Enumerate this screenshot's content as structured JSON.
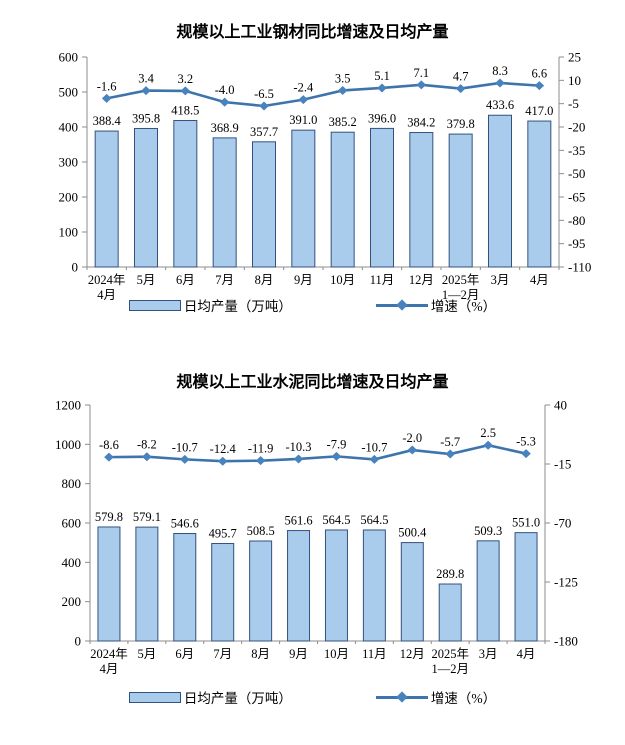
{
  "colors": {
    "bar_fill": "#A9CBEC",
    "bar_stroke": "#33517F",
    "line": "#3E74AC",
    "marker": "#4983BE",
    "axis": "#8C8C8C",
    "text": "#000000"
  },
  "chart_data": [
    {
      "type": "bar+line",
      "title": "规模以上工业钢材同比增速及日均产量",
      "categories": [
        [
          "2024年",
          "4月"
        ],
        [
          "5月"
        ],
        [
          "6月"
        ],
        [
          "7月"
        ],
        [
          "8月"
        ],
        [
          "9月"
        ],
        [
          "10月"
        ],
        [
          "11月"
        ],
        [
          "12月"
        ],
        [
          "2025年",
          "1—2月"
        ],
        [
          "3月"
        ],
        [
          "4月"
        ]
      ],
      "series": [
        {
          "name": "日均产量（万吨）",
          "type": "bar",
          "axis": "left",
          "values": [
            388.4,
            395.8,
            418.5,
            368.9,
            357.7,
            391.0,
            385.2,
            396.0,
            384.2,
            379.8,
            433.6,
            417.0
          ]
        },
        {
          "name": "增速（%）",
          "type": "line",
          "axis": "right",
          "values": [
            -1.6,
            3.4,
            3.2,
            -4.0,
            -6.5,
            -2.4,
            3.5,
            5.1,
            7.1,
            4.7,
            8.3,
            6.6
          ]
        }
      ],
      "left_axis": {
        "min": 0,
        "max": 600,
        "ticks": [
          600,
          500,
          400,
          300,
          200,
          100,
          0
        ]
      },
      "right_axis": {
        "min": -110,
        "max": 25,
        "ticks": [
          25,
          10,
          -5,
          -20,
          -35,
          -50,
          -65,
          -80,
          -95,
          -110
        ]
      },
      "grid": false,
      "legend_position": "bottom",
      "legend": [
        "日均产量（万吨）",
        "增速（%）"
      ]
    },
    {
      "type": "bar+line",
      "title": "规模以上工业水泥同比增速及日均产量",
      "categories": [
        [
          "2024年",
          "4月"
        ],
        [
          "5月"
        ],
        [
          "6月"
        ],
        [
          "7月"
        ],
        [
          "8月"
        ],
        [
          "9月"
        ],
        [
          "10月"
        ],
        [
          "11月"
        ],
        [
          "12月"
        ],
        [
          "2025年",
          "1—2月"
        ],
        [
          "3月"
        ],
        [
          "4月"
        ]
      ],
      "series": [
        {
          "name": "日均产量（万吨）",
          "type": "bar",
          "axis": "left",
          "values": [
            579.8,
            579.1,
            546.6,
            495.7,
            508.5,
            561.6,
            564.5,
            564.5,
            500.4,
            289.8,
            509.3,
            551.0
          ]
        },
        {
          "name": "增速（%）",
          "type": "line",
          "axis": "right",
          "values": [
            -8.6,
            -8.2,
            -10.7,
            -12.4,
            -11.9,
            -10.3,
            -7.9,
            -10.7,
            -2.0,
            -5.7,
            2.5,
            -5.3
          ]
        }
      ],
      "left_axis": {
        "min": 0,
        "max": 1200,
        "ticks": [
          1200,
          1000,
          800,
          600,
          400,
          200,
          0
        ]
      },
      "right_axis": {
        "min": -180,
        "max": 40,
        "ticks": [
          40,
          -15,
          -70,
          -125,
          -180
        ]
      },
      "grid": false,
      "legend_position": "bottom",
      "legend": [
        "日均产量（万吨）",
        "增速（%）"
      ]
    }
  ]
}
